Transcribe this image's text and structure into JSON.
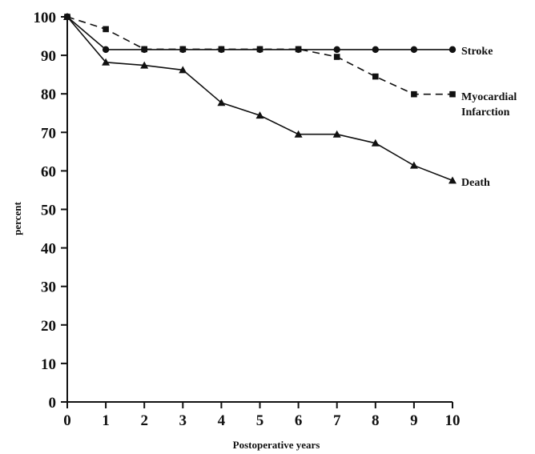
{
  "chart_data": {
    "type": "line",
    "xlabel": "Postoperative years",
    "ylabel": "percent",
    "xlim": [
      0,
      10
    ],
    "ylim": [
      0,
      100
    ],
    "x_ticks": [
      "0",
      "1",
      "2",
      "3",
      "4",
      "5",
      "6",
      "7",
      "8",
      "9",
      "10"
    ],
    "y_ticks": [
      "0",
      "10",
      "20",
      "30",
      "40",
      "50",
      "60",
      "70",
      "80",
      "90",
      "100"
    ],
    "grid": false,
    "legend": "inline labels at line ends",
    "x": [
      0,
      1,
      2,
      3,
      4,
      5,
      6,
      7,
      8,
      9,
      10
    ],
    "series": [
      {
        "key": "stroke",
        "label_lines": [
          "Stroke"
        ],
        "marker": "circle",
        "line_style": "solid",
        "values": [
          100,
          91.5,
          91.5,
          91.5,
          91.5,
          91.5,
          91.5,
          91.5,
          91.5,
          91.5,
          91.5
        ]
      },
      {
        "key": "mi",
        "label_lines": [
          "Myocardial",
          "Infarction"
        ],
        "marker": "square",
        "line_style": "dashed",
        "values": [
          100,
          96.8,
          91.6,
          91.6,
          91.6,
          91.6,
          91.6,
          89.6,
          84.5,
          79.9,
          79.9
        ]
      },
      {
        "key": "death",
        "label_lines": [
          "Death"
        ],
        "marker": "triangle",
        "line_style": "solid",
        "values": [
          100,
          88.2,
          87.4,
          86.2,
          77.7,
          74.4,
          69.5,
          69.5,
          67.2,
          61.4,
          57.5
        ]
      }
    ]
  }
}
